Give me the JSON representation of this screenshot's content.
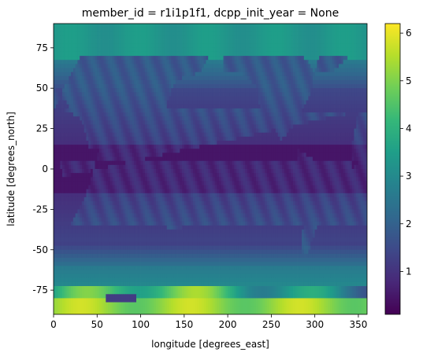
{
  "chart_data": {
    "type": "heatmap",
    "title": "member_id = r1i1p1f1, dcpp_init_year = None",
    "xlabel": "longitude [degrees_east]",
    "ylabel": "latitude [degrees_north]",
    "xlim": [
      0,
      360
    ],
    "ylim": [
      -90,
      90
    ],
    "x_ticks": [
      0,
      50,
      100,
      150,
      200,
      250,
      300,
      350
    ],
    "y_ticks": [
      -75,
      -50,
      -25,
      0,
      25,
      50,
      75
    ],
    "colorbar": {
      "colormap": "viridis",
      "vmin": 0.1,
      "vmax": 6.2,
      "ticks": [
        1,
        2,
        3,
        4,
        5,
        6
      ]
    },
    "grid": false,
    "description_values": {
      "arctic_ocean": 3.3,
      "tropics_ocean": 0.5,
      "midlatitude_ocean": 1.0,
      "southern_ocean": 2.8,
      "antarctica_max": 6.0
    }
  },
  "colors": {
    "viridis": [
      "#440154",
      "#482878",
      "#3e4989",
      "#31688e",
      "#26828e",
      "#1f9e89",
      "#35b779",
      "#6ece58",
      "#b5de2b",
      "#fde725"
    ]
  }
}
